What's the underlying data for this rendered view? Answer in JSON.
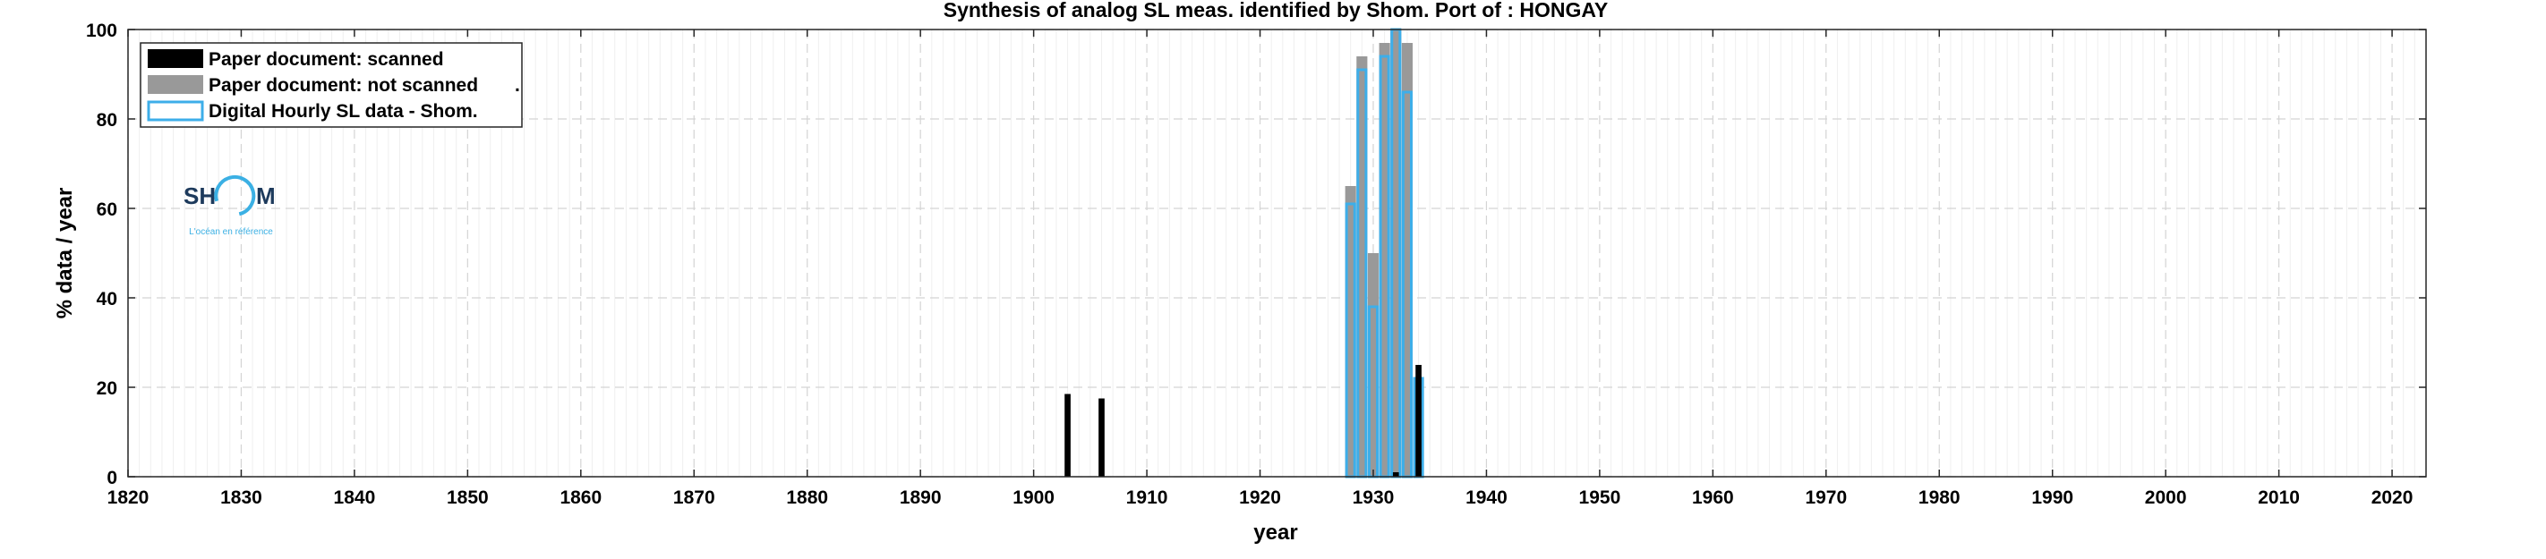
{
  "chart_data": {
    "type": "bar",
    "title": "Synthesis of analog SL meas. identified by Shom. Port of : HONGAY",
    "xlabel": "year",
    "ylabel": "% data / year",
    "xlim": [
      1820,
      2023
    ],
    "ylim": [
      0,
      100
    ],
    "xticks": [
      1820,
      1830,
      1840,
      1850,
      1860,
      1870,
      1880,
      1890,
      1900,
      1910,
      1920,
      1930,
      1940,
      1950,
      1960,
      1970,
      1980,
      1990,
      2000,
      2010,
      2020
    ],
    "yticks": [
      0,
      20,
      40,
      60,
      80,
      100
    ],
    "grid": true,
    "legend_position": "top-left",
    "series": [
      {
        "name": "Paper document: scanned",
        "color": "#000000",
        "points": [
          {
            "x": 1903,
            "y": 18.5
          },
          {
            "x": 1906,
            "y": 17.5
          },
          {
            "x": 1932,
            "y": 1
          },
          {
            "x": 1934,
            "y": 25
          }
        ]
      },
      {
        "name": "Paper document: not scanned",
        "note_mark": ".",
        "color": "#999999",
        "points": [
          {
            "x": 1928,
            "y": 65
          },
          {
            "x": 1929,
            "y": 94
          },
          {
            "x": 1930,
            "y": 50
          },
          {
            "x": 1931,
            "y": 97
          },
          {
            "x": 1932,
            "y": 100
          },
          {
            "x": 1933,
            "y": 97
          }
        ]
      },
      {
        "name": "Digital Hourly SL data - Shom.",
        "color": "#3daee9",
        "points": [
          {
            "x": 1928,
            "y": 61
          },
          {
            "x": 1929,
            "y": 91
          },
          {
            "x": 1930,
            "y": 38
          },
          {
            "x": 1931,
            "y": 94
          },
          {
            "x": 1932,
            "y": 100
          },
          {
            "x": 1933,
            "y": 86
          },
          {
            "x": 1934,
            "y": 22
          }
        ]
      }
    ]
  },
  "logo": {
    "text_left": "SH",
    "text_right": "M",
    "tagline": "L'océan en référence",
    "color_dark": "#1d3a5c",
    "color_light": "#3bb0e4"
  }
}
